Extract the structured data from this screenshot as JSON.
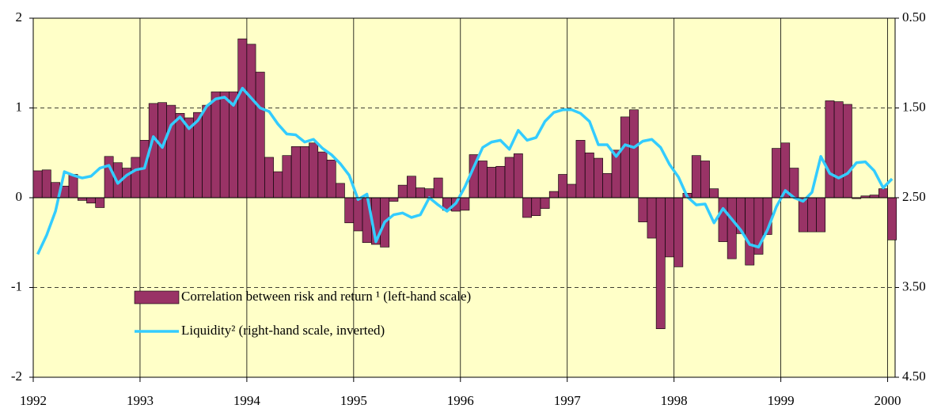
{
  "chart_data": {
    "type": "combo",
    "x": [
      1992,
      1992.083,
      1992.167,
      1992.25,
      1992.333,
      1992.417,
      1992.5,
      1992.583,
      1992.667,
      1992.75,
      1992.833,
      1992.917,
      1993,
      1993.083,
      1993.167,
      1993.25,
      1993.333,
      1993.417,
      1993.5,
      1993.583,
      1993.667,
      1993.75,
      1993.833,
      1993.917,
      1994,
      1994.083,
      1994.167,
      1994.25,
      1994.333,
      1994.417,
      1994.5,
      1994.583,
      1994.667,
      1994.75,
      1994.833,
      1994.917,
      1995,
      1995.083,
      1995.167,
      1995.25,
      1995.333,
      1995.417,
      1995.5,
      1995.583,
      1995.667,
      1995.75,
      1995.833,
      1995.917,
      1996,
      1996.083,
      1996.167,
      1996.25,
      1996.333,
      1996.417,
      1996.5,
      1996.583,
      1996.667,
      1996.75,
      1996.833,
      1996.917,
      1997,
      1997.083,
      1997.167,
      1997.25,
      1997.333,
      1997.417,
      1997.5,
      1997.583,
      1997.667,
      1997.75,
      1997.833,
      1997.917,
      1998,
      1998.083,
      1998.167,
      1998.25,
      1998.333,
      1998.417,
      1998.5,
      1998.583,
      1998.667,
      1998.75,
      1998.833,
      1998.917,
      1999,
      1999.083,
      1999.167,
      1999.25,
      1999.333,
      1999.417,
      1999.5,
      1999.583,
      1999.667,
      1999.75,
      1999.833,
      1999.917,
      2000
    ],
    "series": [
      {
        "name": "Correlation between risk and return ¹ (left-hand scale)",
        "type": "bar",
        "color": "#993366",
        "values": [
          0.3,
          0.31,
          0.17,
          0.13,
          0.26,
          -0.03,
          -0.06,
          -0.11,
          0.46,
          0.39,
          0.33,
          0.45,
          0.64,
          1.05,
          1.06,
          1.03,
          0.94,
          0.89,
          0.95,
          1.03,
          1.18,
          1.18,
          1.18,
          1.77,
          1.71,
          1.4,
          0.45,
          0.29,
          0.47,
          0.57,
          0.57,
          0.61,
          0.51,
          0.42,
          0.16,
          -0.28,
          -0.37,
          -0.5,
          -0.52,
          -0.55,
          -0.04,
          0.14,
          0.24,
          0.11,
          0.1,
          0.22,
          -0.14,
          -0.15,
          -0.14,
          0.48,
          0.41,
          0.34,
          0.35,
          0.45,
          0.49,
          -0.22,
          -0.2,
          -0.12,
          0.07,
          0.26,
          0.15,
          0.64,
          0.5,
          0.44,
          0.27,
          0.53,
          0.9,
          0.98,
          -0.27,
          -0.45,
          -1.46,
          -0.66,
          -0.77,
          0.05,
          0.47,
          0.41,
          0.1,
          -0.49,
          -0.68,
          -0.4,
          -0.75,
          -0.63,
          -0.41,
          0.55,
          0.61,
          0.33,
          -0.38,
          -0.38,
          -0.38,
          1.08,
          1.07,
          1.04,
          -0.01,
          0.02,
          0.03,
          0.1,
          -0.47
        ]
      },
      {
        "name": "Liquidity² (right-hand scale, inverted)",
        "type": "line",
        "axis": "y2",
        "color": "#33ccff",
        "values": [
          3.13,
          2.92,
          2.65,
          2.21,
          2.25,
          2.28,
          2.26,
          2.17,
          2.14,
          2.34,
          2.25,
          2.19,
          2.17,
          1.82,
          1.94,
          1.69,
          1.6,
          1.73,
          1.64,
          1.48,
          1.4,
          1.38,
          1.47,
          1.28,
          1.39,
          1.5,
          1.54,
          1.68,
          1.79,
          1.8,
          1.88,
          1.85,
          1.95,
          2.02,
          2.12,
          2.25,
          2.52,
          2.46,
          2.99,
          2.77,
          2.69,
          2.67,
          2.72,
          2.69,
          2.5,
          2.58,
          2.65,
          2.56,
          2.38,
          2.16,
          1.94,
          1.88,
          1.86,
          1.96,
          1.75,
          1.86,
          1.83,
          1.65,
          1.55,
          1.52,
          1.52,
          1.56,
          1.65,
          1.91,
          1.91,
          2.04,
          1.91,
          1.94,
          1.87,
          1.85,
          1.94,
          2.13,
          2.27,
          2.49,
          2.58,
          2.57,
          2.78,
          2.62,
          2.74,
          2.86,
          3.02,
          3.05,
          2.86,
          2.6,
          2.42,
          2.5,
          2.54,
          2.44,
          2.04,
          2.23,
          2.28,
          2.23,
          2.11,
          2.1,
          2.2,
          2.39,
          2.29
        ]
      }
    ],
    "xlim": [
      1992,
      2000.07
    ],
    "xticks": [
      1992,
      1993,
      1994,
      1995,
      1996,
      1997,
      1998,
      1999,
      2000
    ],
    "ylim": [
      -2,
      2
    ],
    "yticks": [
      -2,
      -1,
      0,
      1,
      2
    ],
    "y2lim": [
      4.5,
      0.5
    ],
    "y2_inverted": true,
    "y2ticks": [
      {
        "value": 0.5,
        "label": "0.50"
      },
      {
        "value": 1.5,
        "label": "1.50"
      },
      {
        "value": 2.5,
        "label": "2.50"
      },
      {
        "value": 3.5,
        "label": "3.50"
      },
      {
        "value": 4.5,
        "label": "4.50"
      }
    ],
    "grid": true,
    "background": "#ffffc8",
    "legend": "lower left"
  }
}
